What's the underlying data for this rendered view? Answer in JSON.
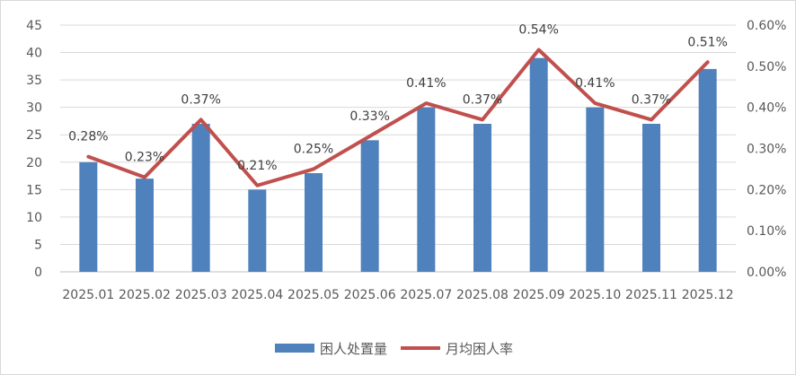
{
  "chart_data": {
    "type": "bar+line",
    "categories": [
      "2025.01",
      "2025.02",
      "2025.03",
      "2025.04",
      "2025.05",
      "2025.06",
      "2025.07",
      "2025.08",
      "2025.09",
      "2025.10",
      "2025.11",
      "2025.12"
    ],
    "series": [
      {
        "name": "困人处置量",
        "type": "bar",
        "axis": "left",
        "color": "#4f81bd",
        "values": [
          20,
          17,
          27,
          15,
          18,
          24,
          30,
          27,
          39,
          30,
          27,
          37
        ]
      },
      {
        "name": "月均困人率",
        "type": "line",
        "axis": "right",
        "color": "#c0504d",
        "values": [
          0.28,
          0.23,
          0.37,
          0.21,
          0.25,
          0.33,
          0.41,
          0.37,
          0.54,
          0.41,
          0.37,
          0.51
        ],
        "labels": [
          "0.28%",
          "0.23%",
          "0.37%",
          "0.21%",
          "0.25%",
          "0.33%",
          "0.41%",
          "0.37%",
          "0.54%",
          "0.41%",
          "0.37%",
          "0.51%"
        ]
      }
    ],
    "left_axis": {
      "range": [
        0,
        45
      ],
      "ticks": [
        "0",
        "5",
        "10",
        "15",
        "20",
        "25",
        "30",
        "35",
        "40",
        "45"
      ]
    },
    "right_axis": {
      "range": [
        0,
        0.6
      ],
      "ticks": [
        "0.00%",
        "0.10%",
        "0.20%",
        "0.30%",
        "0.40%",
        "0.50%",
        "0.60%"
      ]
    },
    "grid": true,
    "legend": "bottom"
  }
}
